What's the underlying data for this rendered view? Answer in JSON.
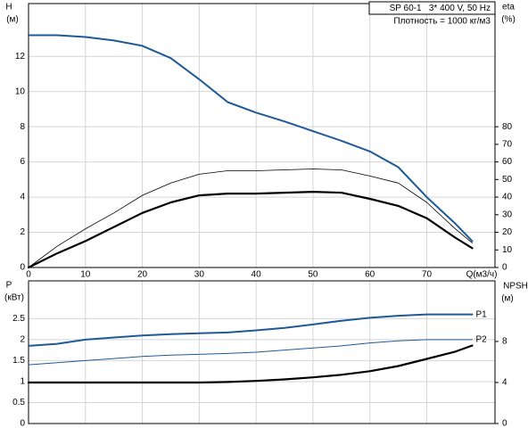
{
  "chart_data": [
    {
      "type": "line",
      "info": [
        "SP 60-1   3* 400 V, 50 Hz",
        "Плотность = 1000 кг/м3"
      ],
      "x_label": "Q(м3/ч)",
      "y_label": [
        "H",
        "(м)"
      ],
      "y2_label": [
        "eta",
        "(%)"
      ],
      "x": [
        0,
        5,
        10,
        15,
        20,
        25,
        30,
        35,
        40,
        45,
        50,
        55,
        60,
        65,
        70,
        75,
        78
      ],
      "xlim": [
        0,
        82
      ],
      "xticks": [
        0,
        10,
        20,
        30,
        40,
        50,
        60,
        70
      ],
      "ylim": [
        0,
        15
      ],
      "yticks": [
        0,
        2,
        4,
        6,
        8,
        10,
        12
      ],
      "y2lim": [
        0,
        150
      ],
      "y2ticks": [
        0,
        10,
        20,
        30,
        40,
        50,
        60,
        70,
        80
      ],
      "grid": true,
      "series": [
        {
          "color": "#1f5a96",
          "width": 2,
          "values": [
            13.2,
            13.2,
            13.1,
            12.9,
            12.6,
            11.9,
            10.7,
            9.4,
            8.8,
            8.3,
            7.75,
            7.2,
            6.6,
            5.7,
            4.0,
            2.5,
            1.5
          ]
        },
        {
          "color": "#000000",
          "width": 0.8,
          "axis": "y2",
          "values": [
            0,
            12,
            22,
            31,
            41,
            48,
            53,
            55,
            55,
            55.5,
            56,
            55.5,
            52,
            48,
            37,
            22,
            14
          ]
        },
        {
          "color": "#000000",
          "width": 2.2,
          "axis": "y2",
          "values": [
            0,
            8,
            15,
            23,
            31,
            37,
            41,
            42,
            42,
            42.5,
            43,
            42.5,
            39,
            35,
            28,
            17,
            11
          ]
        }
      ]
    },
    {
      "type": "line",
      "y_label": [
        "P",
        "(кВт)"
      ],
      "y2_label": [
        "NPSH",
        "(м)"
      ],
      "x": [
        0,
        5,
        10,
        15,
        20,
        25,
        30,
        35,
        40,
        45,
        50,
        55,
        60,
        65,
        70,
        75,
        78
      ],
      "xlim": [
        0,
        82
      ],
      "xticks": [
        0,
        10,
        20,
        30,
        40,
        50,
        60,
        70
      ],
      "ylim": [
        0,
        3.4
      ],
      "yticks": [
        0,
        0.5,
        1,
        1.5,
        2,
        2.5
      ],
      "y2lim": [
        0,
        13.9
      ],
      "y2ticks": [
        0,
        4,
        8
      ],
      "grid": true,
      "series": [
        {
          "name": "P1",
          "color": "#1f5a96",
          "width": 2,
          "values": [
            1.85,
            1.9,
            2.0,
            2.05,
            2.1,
            2.13,
            2.15,
            2.17,
            2.22,
            2.28,
            2.36,
            2.45,
            2.52,
            2.57,
            2.6,
            2.6,
            2.6
          ]
        },
        {
          "name": "P2",
          "color": "#1f5a96",
          "width": 1,
          "values": [
            1.4,
            1.45,
            1.5,
            1.55,
            1.6,
            1.63,
            1.65,
            1.67,
            1.7,
            1.75,
            1.8,
            1.85,
            1.92,
            1.97,
            2.0,
            2.0,
            2.0
          ]
        },
        {
          "color": "#000000",
          "width": 2.2,
          "axis": "y2",
          "values": [
            4,
            4,
            4,
            4,
            4,
            4,
            4,
            4.05,
            4.15,
            4.3,
            4.5,
            4.75,
            5.1,
            5.6,
            6.3,
            7.0,
            7.6
          ]
        }
      ]
    }
  ]
}
